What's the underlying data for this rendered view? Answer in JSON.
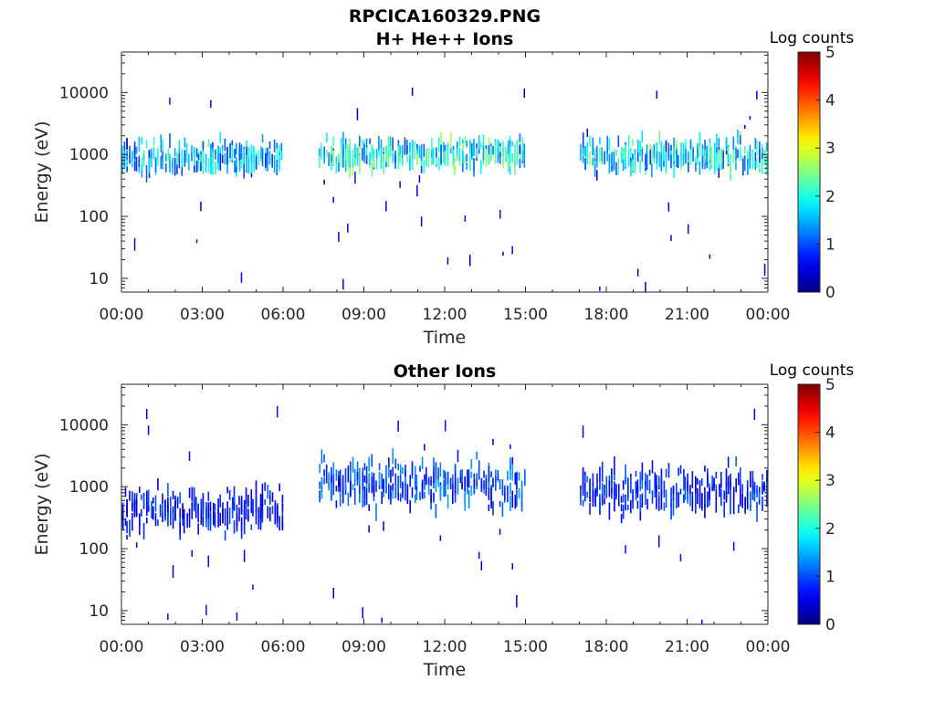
{
  "page_title": "RPCICA160329.PNG",
  "chart_data": [
    {
      "type": "heatmap",
      "title": "H+ He++ Ions",
      "xlabel": "Time",
      "ylabel": "Energy (eV)",
      "x_ticks": [
        "00:00",
        "03:00",
        "06:00",
        "09:00",
        "12:00",
        "15:00",
        "18:00",
        "21:00",
        "00:00"
      ],
      "x_range_hours": [
        0,
        24
      ],
      "y_ticks": [
        "10",
        "100",
        "1000",
        "10000"
      ],
      "y_scale": "log",
      "y_range": [
        6,
        45000
      ],
      "colorbar": {
        "label": "Log counts",
        "ticks": [
          "0",
          "1",
          "2",
          "3",
          "4",
          "5"
        ],
        "range": [
          0,
          5
        ],
        "colormap": "jet"
      },
      "data_gaps_hours": [
        [
          6.0,
          7.3
        ],
        [
          15.0,
          17.0
        ]
      ],
      "series": [
        {
          "t_start": 0.0,
          "t_end": 6.0,
          "core_energy_eV": 750,
          "core_log_counts": 2.2
        },
        {
          "t_start": 7.3,
          "t_end": 15.0,
          "core_energy_eV": 850,
          "core_log_counts": 2.6
        },
        {
          "t_start": 17.0,
          "t_end": 24.0,
          "core_energy_eV": 800,
          "core_log_counts": 2.5
        }
      ]
    },
    {
      "type": "heatmap",
      "title": "Other Ions",
      "xlabel": "Time",
      "ylabel": "Energy (eV)",
      "x_ticks": [
        "00:00",
        "03:00",
        "06:00",
        "09:00",
        "12:00",
        "15:00",
        "18:00",
        "21:00",
        "00:00"
      ],
      "x_range_hours": [
        0,
        24
      ],
      "y_ticks": [
        "10",
        "100",
        "1000",
        "10000"
      ],
      "y_scale": "log",
      "y_range": [
        6,
        45000
      ],
      "colorbar": {
        "label": "Log counts",
        "ticks": [
          "0",
          "1",
          "2",
          "3",
          "4",
          "5"
        ],
        "range": [
          0,
          5
        ],
        "colormap": "jet"
      },
      "data_gaps_hours": [
        [
          6.0,
          7.3
        ],
        [
          15.0,
          17.0
        ]
      ],
      "series": [
        {
          "t_start": 0.0,
          "t_end": 6.0,
          "core_energy_eV": 350,
          "core_log_counts": 1.0
        },
        {
          "t_start": 7.3,
          "t_end": 15.0,
          "core_energy_eV": 950,
          "core_log_counts": 1.4
        },
        {
          "t_start": 17.0,
          "t_end": 24.0,
          "core_energy_eV": 700,
          "core_log_counts": 1.1
        }
      ]
    }
  ]
}
